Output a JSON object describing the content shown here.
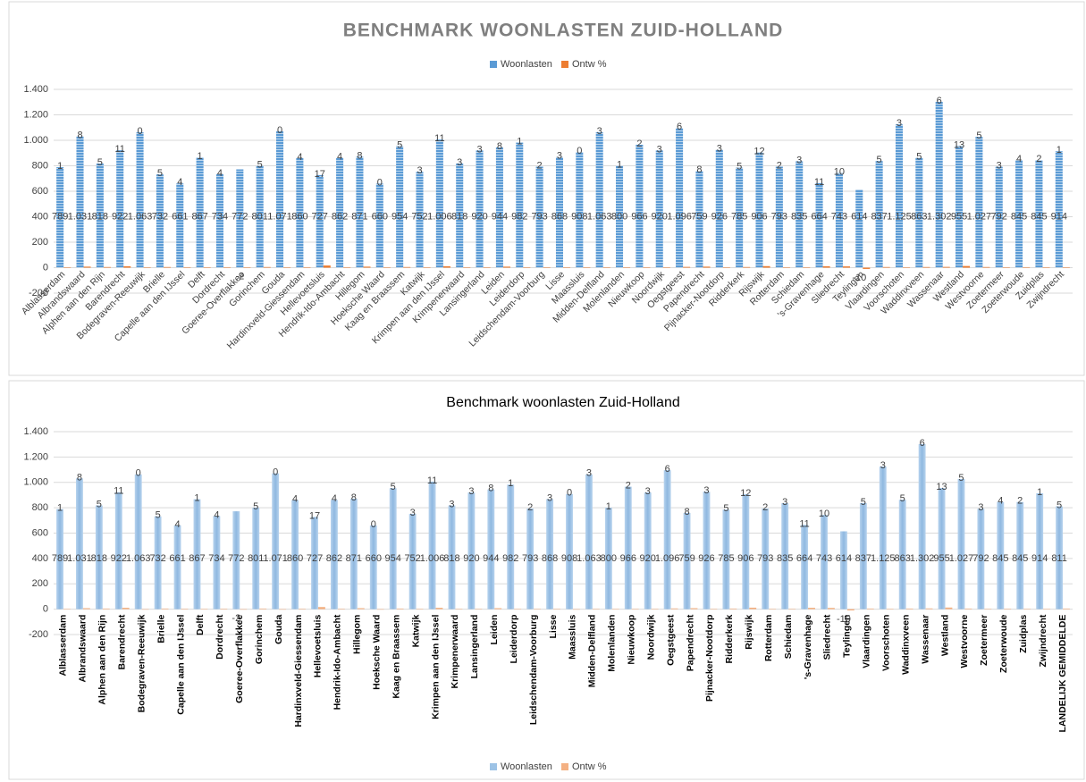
{
  "chart_data": [
    {
      "type": "bar",
      "title": "BENCHMARK WOONLASTEN ZUID-HOLLAND",
      "legend": "top",
      "grid": true,
      "categories": [
        "Alblasserdam",
        "Albrandswaard",
        "Alphen aan den Rijn",
        "Barendrecht",
        "Bodegraven-Reeuwijk",
        "Brielle",
        "Capelle aan den IJssel",
        "Delft",
        "Dordrecht",
        "Goeree-Overflakkee",
        "Gorinchem",
        "Gouda",
        "Hardinxveld-Giessendam",
        "Hellevoetsluis",
        "Hendrik-Ido-Ambacht",
        "Hillegom",
        "Hoeksche Waard",
        "Kaag en Braassem",
        "Katwijk",
        "Krimpen aan den IJssel",
        "Krimpenerwaard",
        "Lansingerland",
        "Leiden",
        "Leiderdorp",
        "Leidschendam-Voorburg",
        "Lisse",
        "Maassluis",
        "Midden-Delfland",
        "Molenlanden",
        "Nieuwkoop",
        "Noordwijk",
        "Oegstgeest",
        "Papendrecht",
        "Pijnacker-Nootdorp",
        "Ridderkerk",
        "Rijswijk",
        "Rotterdam",
        "Schiedam",
        "'s-Gravenhage",
        "Sliedrecht",
        "Teylingen",
        "Vlaardingen",
        "Voorschoten",
        "Waddinxveen",
        "Wassenaar",
        "Westland",
        "Westvoorne",
        "Zoetermeer",
        "Zoeterwoude",
        "Zuidplas",
        "Zwijndrecht"
      ],
      "series": [
        {
          "name": "Woonlasten",
          "color": "#5b9bd5",
          "values": [
            789,
            1031,
            818,
            922,
            1063,
            732,
            661,
            867,
            734,
            772,
            801,
            1071,
            860,
            727,
            862,
            871,
            660,
            954,
            752,
            1006,
            818,
            920,
            944,
            982,
            793,
            868,
            908,
            1063,
            800,
            966,
            920,
            1096,
            759,
            926,
            785,
            906,
            793,
            835,
            664,
            743,
            614,
            837,
            1125,
            863,
            1302,
            955,
            1027,
            792,
            845,
            845,
            914
          ],
          "value_labels": [
            "789",
            "1.031",
            "818",
            "922",
            "1.063",
            "732",
            "661",
            "867",
            "734",
            "772",
            "801",
            "1.071",
            "860",
            "727",
            "862",
            "871",
            "660",
            "954",
            "752",
            "1.006",
            "818",
            "920",
            "944",
            "982",
            "793",
            "868",
            "908",
            "1.063",
            "800",
            "966",
            "920",
            "1.096",
            "759",
            "926",
            "785",
            "906",
            "793",
            "835",
            "664",
            "743",
            "614",
            "837",
            "1.125",
            "863",
            "1.302",
            "955",
            "1.027",
            "792",
            "845",
            "845",
            "914"
          ]
        },
        {
          "name": "Ontw %",
          "color": "#ed7d31",
          "values": [
            1,
            8,
            5,
            11,
            0,
            5,
            4,
            1,
            4,
            -2,
            5,
            0,
            4,
            17,
            4,
            8,
            0,
            5,
            3,
            11,
            3,
            3,
            8,
            1,
            2,
            3,
            0,
            3,
            1,
            2,
            3,
            6,
            8,
            3,
            5,
            12,
            2,
            3,
            11,
            10,
            -10,
            5,
            3,
            5,
            6,
            13,
            5,
            3,
            4,
            2,
            1
          ]
        }
      ],
      "ylim": [
        -200,
        1400
      ],
      "yticks": [
        -200,
        0,
        200,
        400,
        600,
        800,
        {
          "value": 1000,
          "label": "1.000"
        },
        {
          "value": 1200,
          "label": "1.200"
        },
        {
          "value": 1400,
          "label": "1.400"
        }
      ]
    },
    {
      "type": "bar",
      "title": "Benchmark woonlasten Zuid-Holland",
      "legend": "bottom",
      "grid": true,
      "categories": [
        "Alblasserdam",
        "Albrandswaard",
        "Alphen aan den Rijn",
        "Barendrecht",
        "Bodegraven-Reeuwijk",
        "Brielle",
        "Capelle aan den IJssel",
        "Delft",
        "Dordrecht",
        "Goeree-Overflakkee",
        "Gorinchem",
        "Gouda",
        "Hardinxveld-Giessendam",
        "Hellevoetsluis",
        "Hendrik-Ido-Ambacht",
        "Hillegom",
        "Hoeksche Waard",
        "Kaag en Braassem",
        "Katwijk",
        "Krimpen aan den IJssel",
        "Krimpenerwaard",
        "Lansingerland",
        "Leiden",
        "Leiderdorp",
        "Leidschendam-Voorburg",
        "Lisse",
        "Maassluis",
        "Midden-Delfland",
        "Molenlanden",
        "Nieuwkoop",
        "Noordwijk",
        "Oegstgeest",
        "Papendrecht",
        "Pijnacker-Nootdorp",
        "Ridderkerk",
        "Rijswijk",
        "Rotterdam",
        "Schiedam",
        "'s-Gravenhage",
        "Sliedrecht",
        "Teylingen",
        "Vlaardingen",
        "Voorschoten",
        "Waddinxveen",
        "Wassenaar",
        "Westland",
        "Westvoorne",
        "Zoetermeer",
        "Zoeterwoude",
        "Zuidplas",
        "Zwijndrecht",
        "LANDELIJK GEMIDDELDE"
      ],
      "series": [
        {
          "name": "Woonlasten",
          "color": "#9dc3e6",
          "values": [
            789,
            1031,
            818,
            922,
            1063,
            732,
            661,
            867,
            734,
            772,
            801,
            1071,
            860,
            727,
            862,
            871,
            660,
            954,
            752,
            1006,
            818,
            920,
            944,
            982,
            793,
            868,
            908,
            1063,
            800,
            966,
            920,
            1096,
            759,
            926,
            785,
            906,
            793,
            835,
            664,
            743,
            614,
            837,
            1125,
            863,
            1302,
            955,
            1027,
            792,
            845,
            845,
            914,
            811
          ],
          "value_labels": [
            "789",
            "1.031",
            "818",
            "922",
            "1.063",
            "732",
            "661",
            "867",
            "734",
            "772",
            "801",
            "1.071",
            "860",
            "727",
            "862",
            "871",
            "660",
            "954",
            "752",
            "1.006",
            "818",
            "920",
            "944",
            "982",
            "793",
            "868",
            "908",
            "1.063",
            "800",
            "966",
            "920",
            "1.096",
            "759",
            "926",
            "785",
            "906",
            "793",
            "835",
            "664",
            "743",
            "614",
            "837",
            "1.125",
            "863",
            "1.302",
            "955",
            "1.027",
            "792",
            "845",
            "845",
            "914",
            "811"
          ]
        },
        {
          "name": "Ontw %",
          "color": "#f4b183",
          "values": [
            1,
            8,
            5,
            11,
            0,
            5,
            4,
            1,
            4,
            -2,
            5,
            0,
            4,
            17,
            4,
            8,
            0,
            5,
            3,
            11,
            3,
            3,
            8,
            1,
            2,
            3,
            0,
            3,
            1,
            2,
            3,
            6,
            8,
            3,
            5,
            12,
            2,
            3,
            11,
            10,
            -10,
            5,
            3,
            5,
            6,
            13,
            5,
            3,
            4,
            2,
            1,
            5
          ]
        }
      ],
      "ylim": [
        -200,
        1400
      ],
      "yticks": [
        -200,
        0,
        200,
        400,
        600,
        800,
        {
          "value": 1000,
          "label": "1.000"
        },
        {
          "value": 1200,
          "label": "1.200"
        },
        {
          "value": 1400,
          "label": "1.400"
        }
      ]
    }
  ]
}
